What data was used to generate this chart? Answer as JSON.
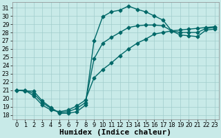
{
  "xlabel": "Humidex (Indice chaleur)",
  "bg_color": "#c8eae8",
  "line_color": "#006868",
  "grid_color": "#a0cccc",
  "xlim": [
    -0.5,
    23.5
  ],
  "ylim": [
    17.5,
    31.7
  ],
  "xticks": [
    0,
    1,
    2,
    3,
    4,
    5,
    6,
    7,
    8,
    9,
    10,
    11,
    12,
    13,
    14,
    15,
    16,
    17,
    18,
    19,
    20,
    21,
    22,
    23
  ],
  "yticks": [
    18,
    19,
    20,
    21,
    22,
    23,
    24,
    25,
    26,
    27,
    28,
    29,
    30,
    31
  ],
  "line1_x": [
    0,
    1,
    2,
    3,
    4,
    5,
    6,
    7,
    8,
    9,
    10,
    11,
    12,
    13,
    14,
    15,
    16,
    17,
    18,
    19,
    20,
    21,
    22,
    23
  ],
  "line1_y": [
    21.0,
    20.9,
    20.9,
    19.7,
    18.9,
    18.2,
    18.2,
    18.4,
    19.2,
    27.0,
    29.9,
    30.5,
    30.7,
    31.2,
    30.8,
    30.5,
    30.0,
    29.5,
    28.2,
    27.7,
    27.6,
    27.5,
    28.3,
    28.4
  ],
  "line2_x": [
    0,
    1,
    2,
    3,
    4,
    5,
    6,
    7,
    8,
    9,
    10,
    11,
    12,
    13,
    14,
    15,
    16,
    17,
    18,
    19,
    20,
    21,
    22,
    23
  ],
  "line2_y": [
    21.0,
    21.0,
    20.3,
    19.2,
    18.6,
    18.4,
    18.6,
    19.1,
    19.8,
    22.5,
    23.5,
    24.3,
    25.2,
    26.0,
    26.7,
    27.2,
    27.8,
    28.0,
    28.2,
    28.3,
    28.4,
    28.5,
    28.6,
    28.7
  ],
  "line3_x": [
    0,
    1,
    2,
    3,
    4,
    5,
    6,
    7,
    8,
    9,
    10,
    11,
    12,
    13,
    14,
    15,
    16,
    17,
    18,
    19,
    20,
    21,
    22,
    23
  ],
  "line3_y": [
    21.0,
    21.0,
    20.6,
    19.5,
    18.8,
    18.3,
    18.4,
    18.8,
    19.5,
    24.8,
    26.7,
    27.4,
    28.0,
    28.6,
    28.8,
    28.9,
    28.9,
    28.8,
    28.2,
    28.0,
    28.0,
    28.0,
    28.5,
    28.6
  ],
  "marker": "D",
  "markersize": 2.5,
  "linewidth": 1.0,
  "xlabel_fontsize": 8,
  "tick_fontsize": 6
}
